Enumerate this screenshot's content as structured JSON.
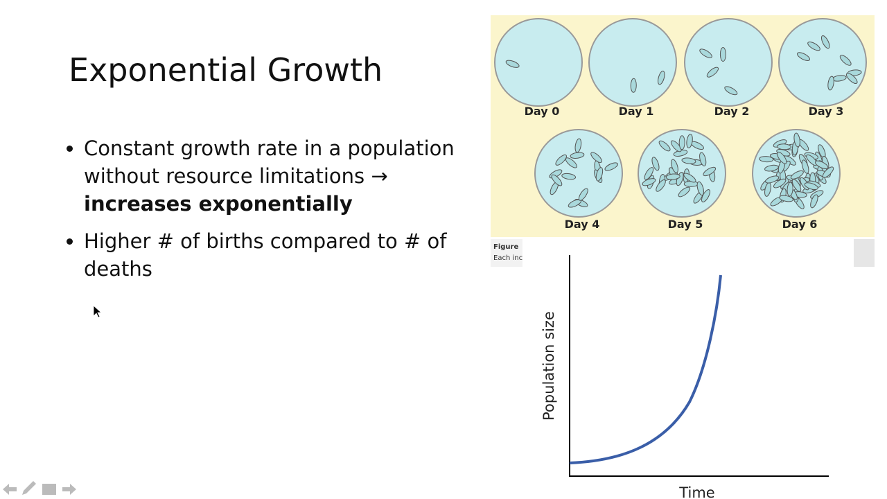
{
  "slide": {
    "title": "Exponential Growth",
    "bullets": [
      {
        "text": "Constant growth rate in a population without resource limitations →",
        "bold": "increases exponentially"
      },
      {
        "text": "Higher # of births compared to # of deaths"
      }
    ],
    "figure": {
      "days": [
        "Day 0",
        "Day 1",
        "Day 2",
        "Day 3",
        "Day 4",
        "Day 5",
        "Day 6"
      ],
      "caption_title": "Figure",
      "caption_text": "Each inc"
    },
    "graph": {
      "y_label": "Population size",
      "x_label": "Time"
    }
  }
}
